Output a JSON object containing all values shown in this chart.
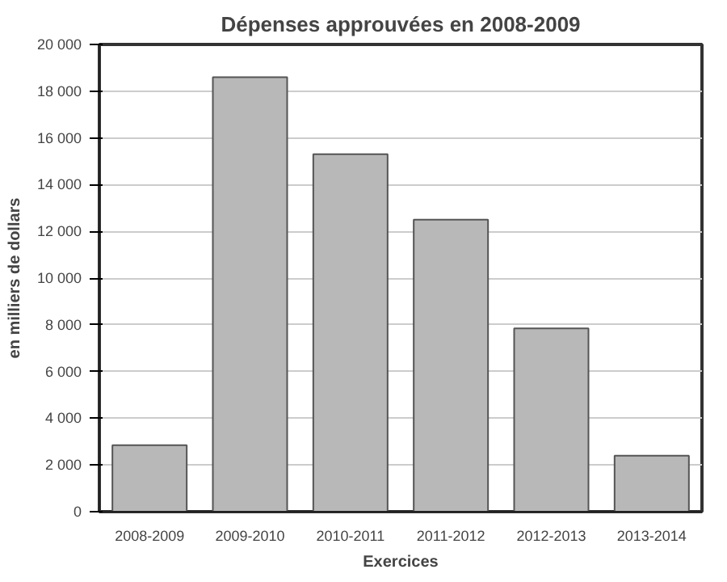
{
  "chart_data": {
    "type": "bar",
    "title": "Dépenses approuvées en 2008-2009",
    "xlabel": "Exercices",
    "ylabel": "en milliers de dollars",
    "categories": [
      "2008-2009",
      "2009-2010",
      "2010-2011",
      "2011-2012",
      "2012-2013",
      "2013-2014"
    ],
    "values": [
      2850,
      18600,
      15300,
      12500,
      7850,
      2400
    ],
    "color": "#b8b8b8",
    "ylim": [
      0,
      20000
    ],
    "yticks": [
      0,
      {
        "value": 2000,
        "label": "2 000"
      },
      {
        "value": 4000,
        "label": "4 000"
      },
      {
        "value": 6000,
        "label": "6 000"
      },
      {
        "value": 8000,
        "label": "8 000"
      },
      {
        "value": 10000,
        "label": "10 000"
      },
      {
        "value": 12000,
        "label": "12 000"
      },
      {
        "value": 14000,
        "label": "14 000"
      },
      {
        "value": 16000,
        "label": "16 000"
      },
      {
        "value": 18000,
        "label": "18 000"
      },
      {
        "value": 20000,
        "label": "20 000"
      }
    ],
    "grid": "y"
  }
}
